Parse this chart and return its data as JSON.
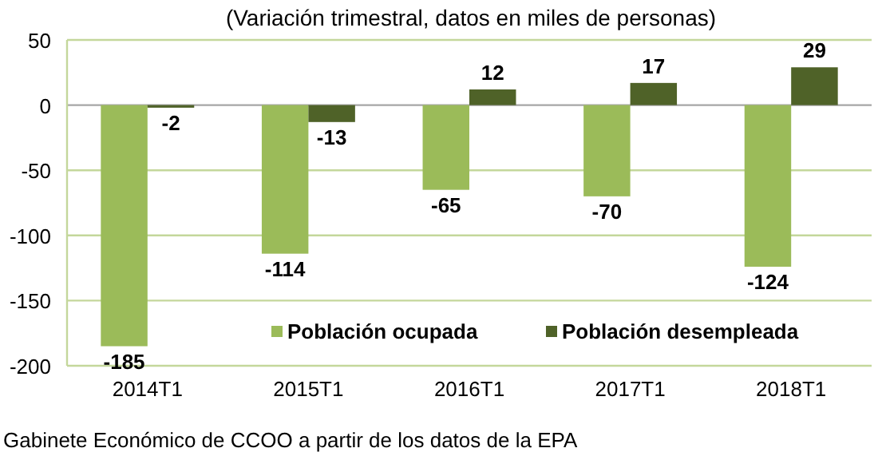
{
  "chart_data": {
    "type": "bar",
    "title": "(Variación trimestral, datos en miles de personas)",
    "categories": [
      "2014T1",
      "2015T1",
      "2016T1",
      "2017T1",
      "2018T1"
    ],
    "series": [
      {
        "name": "Población ocupada",
        "color": "#9bbb59",
        "values": [
          -185,
          -114,
          -65,
          -70,
          -124
        ]
      },
      {
        "name": "Población desempleada",
        "color": "#4f6228",
        "values": [
          -2,
          -13,
          12,
          17,
          29
        ]
      }
    ],
    "ylim": [
      -200,
      50
    ],
    "yticks": [
      -200,
      -150,
      -100,
      -50,
      0,
      50
    ],
    "grid": "y",
    "legend": "bottom",
    "data_labels": true,
    "annotations": [
      "Gabinete Económico de CCOO a partir de los datos de la EPA"
    ]
  }
}
